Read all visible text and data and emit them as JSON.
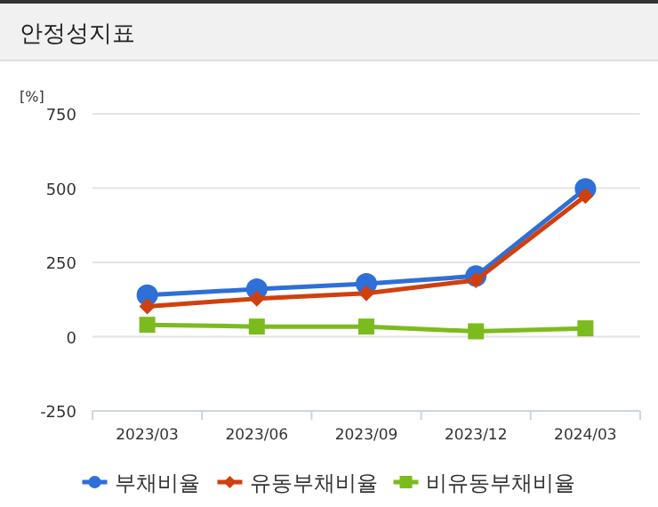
{
  "chart_data": {
    "type": "line",
    "title": "안정성지표",
    "ylabel": "[%]",
    "categories": [
      "2023/03",
      "2023/06",
      "2023/09",
      "2023/12",
      "2024/03"
    ],
    "series": [
      {
        "name": "부채비율",
        "color": "#2e6fd8",
        "marker": "circle",
        "values": [
          140,
          160,
          178,
          204,
          498
        ]
      },
      {
        "name": "유동부채비율",
        "color": "#d0400e",
        "marker": "diamond",
        "values": [
          102,
          128,
          146,
          190,
          474
        ]
      },
      {
        "name": "비유동부채비율",
        "color": "#7cbb1e",
        "marker": "square",
        "values": [
          40,
          34,
          34,
          18,
          28
        ]
      }
    ],
    "ylim": [
      -250,
      750
    ],
    "yticks": [
      -250,
      0,
      250,
      500,
      750
    ],
    "grid": "y",
    "legend": "bottom"
  }
}
